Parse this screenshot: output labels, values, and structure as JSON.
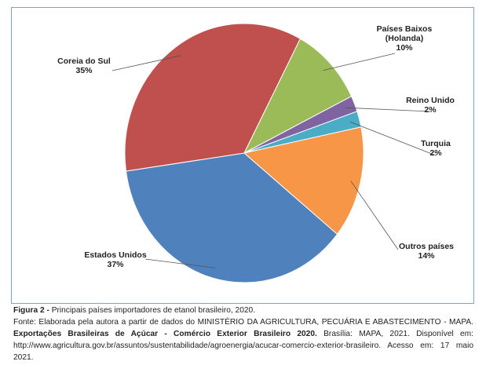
{
  "chart_data": {
    "type": "pie",
    "slices": [
      {
        "label": "Países Baixos (Holanda)",
        "label_lines": [
          "Países Baixos",
          "(Holanda)"
        ],
        "value": 10,
        "pct_label": "10%",
        "color": "#9bbb59"
      },
      {
        "label": "Reino Unido",
        "label_lines": [
          "Reino Unido"
        ],
        "value": 2,
        "pct_label": "2%",
        "color": "#8064a2"
      },
      {
        "label": "Turquia",
        "label_lines": [
          "Turquia"
        ],
        "value": 2,
        "pct_label": "2%",
        "color": "#4bacc6"
      },
      {
        "label": "Outros países",
        "label_lines": [
          "Outros países"
        ],
        "value": 14,
        "pct_label": "14%",
        "color": "#f79646"
      },
      {
        "label": "Estados Unidos",
        "label_lines": [
          "Estados Unidos"
        ],
        "value": 37,
        "pct_label": "37%",
        "color": "#4f81bd"
      },
      {
        "label": "Coreia do Sul",
        "label_lines": [
          "Coreia do Sul"
        ],
        "value": 35,
        "pct_label": "35%",
        "color": "#c0504d"
      }
    ],
    "legend": "none",
    "style": "3d-shaded"
  },
  "caption": {
    "figure_label": "Figura 2 -",
    "figure_text": " Principais países importadores de etanol brasileiro, 2020.",
    "source_text": "Fonte: Elaborada pela autora a partir de dados do MINISTÉRIO DA AGRICULTURA, PECUÁRIA E ABASTECIMENTO - MAPA.",
    "source_bold": "Exportações Brasileiras de Açúcar - Comércio Exterior Brasileiro 2020.",
    "source_rest": " Brasília: MAPA, 2021. Disponível em: http://www.agricultura.gov.br/assuntos/sustentabilidade/agroenergia/acucar-comercio-exterior-brasileiro. Acesso em: 17 maio 2021."
  }
}
